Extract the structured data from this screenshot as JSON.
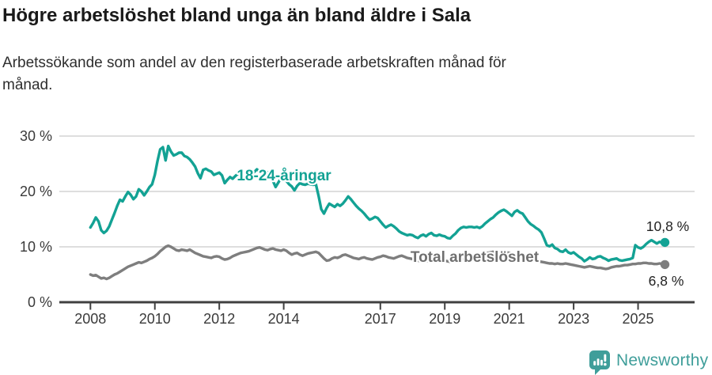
{
  "chart_data": {
    "type": "line",
    "title": "Högre arbetslöshet bland unga än bland äldre i Sala",
    "subtitle": "Arbetssökande som andel av den registerbaserade arbetskraften månad för\nmånad.",
    "grid_on": true,
    "legend_position": "inline-labels",
    "grid_color": "#d9d9d9",
    "axis_color": "#404040",
    "tick_label_color": "#3a3a3a",
    "value_label_color": "#222222",
    "x_axis": {
      "unit": "year",
      "range": [
        2007.0,
        2026.8
      ],
      "ticks": [
        {
          "year": 2008,
          "label": "2008"
        },
        {
          "year": 2010,
          "label": "2010"
        },
        {
          "year": 2012,
          "label": "2012"
        },
        {
          "year": 2014,
          "label": "2014"
        },
        {
          "year": 2017,
          "label": "2017"
        },
        {
          "year": 2019,
          "label": "2019"
        },
        {
          "year": 2021,
          "label": "2021"
        },
        {
          "year": 2023,
          "label": "2023"
        },
        {
          "year": 2025,
          "label": "2025"
        }
      ]
    },
    "y_axis": {
      "unit": "%",
      "range": [
        0,
        30
      ],
      "ticks": [
        {
          "value": 0,
          "label": "0 %"
        },
        {
          "value": 10,
          "label": "10 %"
        },
        {
          "value": 20,
          "label": "20 %"
        },
        {
          "value": 30,
          "label": "30 %"
        }
      ]
    },
    "series": [
      {
        "id": "youth",
        "name": "18-24-åringar",
        "color": "#13a294",
        "label_color": "#13a294",
        "start_year": 2008.0,
        "interval_months": 1,
        "end_label": "10,8 %",
        "last_value": 10.8,
        "values": [
          13.5,
          14.3,
          15.3,
          14.6,
          13.0,
          12.5,
          12.9,
          13.7,
          14.9,
          16.1,
          17.4,
          18.5,
          18.2,
          19.1,
          19.9,
          19.4,
          18.6,
          19.1,
          20.4,
          20.0,
          19.3,
          20.0,
          20.8,
          21.3,
          23.0,
          25.5,
          27.6,
          28.0,
          25.6,
          28.2,
          27.2,
          26.5,
          26.7,
          27.0,
          27.0,
          26.4,
          26.2,
          25.8,
          25.2,
          24.5,
          23.3,
          22.4,
          23.9,
          24.1,
          23.8,
          23.6,
          23.0,
          23.2,
          23.4,
          22.9,
          21.5,
          22.1,
          22.6,
          22.3,
          22.8,
          23.2,
          23.0,
          22.6,
          22.3,
          22.6,
          23.0,
          23.5,
          24.0,
          23.6,
          23.3,
          23.8,
          23.4,
          22.8,
          21.9,
          20.8,
          21.6,
          22.4,
          22.6,
          21.9,
          21.3,
          20.9,
          20.2,
          21.0,
          21.5,
          21.3,
          21.2,
          21.4,
          21.3,
          21.2,
          21.3,
          19.2,
          16.8,
          16.0,
          17.0,
          17.8,
          17.5,
          17.2,
          17.7,
          17.4,
          17.8,
          18.4,
          19.1,
          18.6,
          18.0,
          17.4,
          16.9,
          16.5,
          16.0,
          15.4,
          14.9,
          15.1,
          15.4,
          15.2,
          14.6,
          14.0,
          13.5,
          13.8,
          14.0,
          13.7,
          13.3,
          12.8,
          12.5,
          12.3,
          12.1,
          12.2,
          12.1,
          11.8,
          11.6,
          12.0,
          12.2,
          11.9,
          12.3,
          12.5,
          12.1,
          12.0,
          12.2,
          12.0,
          11.9,
          11.6,
          11.5,
          12.0,
          12.4,
          13.0,
          13.4,
          13.6,
          13.5,
          13.6,
          13.6,
          13.5,
          13.6,
          13.4,
          13.7,
          14.2,
          14.6,
          15.0,
          15.3,
          15.8,
          16.2,
          16.5,
          16.7,
          16.4,
          16.0,
          15.6,
          16.3,
          16.6,
          16.2,
          16.0,
          15.3,
          14.6,
          14.1,
          13.8,
          13.4,
          13.1,
          12.6,
          11.5,
          10.3,
          10.1,
          10.4,
          9.8,
          9.6,
          9.2,
          9.1,
          9.5,
          9.0,
          8.8,
          9.0,
          8.6,
          8.2,
          7.9,
          7.4,
          7.7,
          8.1,
          7.8,
          7.9,
          8.2,
          8.3,
          8.0,
          7.8,
          7.5,
          7.7,
          7.8,
          7.9,
          7.6,
          7.5,
          7.6,
          7.7,
          7.8,
          8.0,
          10.3,
          9.9,
          9.7,
          10.0,
          10.5,
          10.9,
          11.2,
          10.9,
          10.6,
          10.9,
          10.7,
          10.8
        ]
      },
      {
        "id": "total",
        "name": "Total arbetslöshet",
        "color": "#7e7e7e",
        "label_color": "#6f6f6f",
        "start_year": 2008.0,
        "interval_months": 1,
        "end_label": "6,8 %",
        "last_value": 6.8,
        "values": [
          5.0,
          4.8,
          4.9,
          4.6,
          4.3,
          4.4,
          4.2,
          4.4,
          4.7,
          5.0,
          5.2,
          5.5,
          5.8,
          6.1,
          6.4,
          6.6,
          6.8,
          7.0,
          7.2,
          7.1,
          7.3,
          7.5,
          7.8,
          8.0,
          8.3,
          8.7,
          9.2,
          9.6,
          10.0,
          10.2,
          10.0,
          9.7,
          9.4,
          9.3,
          9.5,
          9.4,
          9.3,
          9.5,
          9.2,
          8.9,
          8.7,
          8.5,
          8.3,
          8.2,
          8.1,
          8.0,
          8.2,
          8.3,
          8.2,
          7.9,
          7.7,
          7.8,
          8.0,
          8.3,
          8.5,
          8.7,
          8.9,
          9.0,
          9.1,
          9.2,
          9.4,
          9.6,
          9.8,
          9.9,
          9.7,
          9.5,
          9.4,
          9.6,
          9.7,
          9.5,
          9.4,
          9.3,
          9.5,
          9.3,
          8.9,
          8.6,
          8.8,
          8.9,
          8.6,
          8.4,
          8.6,
          8.8,
          8.9,
          9.0,
          9.1,
          8.9,
          8.4,
          7.9,
          7.5,
          7.6,
          7.9,
          8.1,
          8.0,
          8.2,
          8.5,
          8.6,
          8.4,
          8.2,
          8.0,
          7.9,
          7.8,
          8.0,
          8.1,
          7.9,
          7.8,
          7.7,
          7.9,
          8.1,
          8.2,
          8.4,
          8.3,
          8.1,
          8.0,
          7.9,
          8.1,
          8.3,
          8.4,
          8.2,
          8.0,
          7.9,
          7.8,
          7.6,
          7.5,
          7.4,
          7.3,
          7.4,
          7.5,
          7.4,
          7.3,
          7.4,
          7.5,
          7.6,
          7.5,
          7.4,
          7.3,
          7.4,
          7.5,
          7.6,
          7.7,
          7.8,
          7.9,
          8.0,
          8.1,
          8.2,
          8.3,
          8.4,
          8.6,
          8.8,
          8.9,
          9.0,
          9.1,
          9.0,
          8.9,
          9.0,
          9.1,
          9.0,
          8.9,
          8.8,
          8.7,
          8.5,
          8.4,
          8.2,
          8.1,
          7.9,
          7.8,
          7.6,
          7.5,
          7.4,
          7.3,
          7.2,
          7.1,
          7.0,
          7.0,
          6.9,
          7.0,
          6.9,
          6.9,
          7.0,
          6.9,
          6.8,
          6.7,
          6.6,
          6.5,
          6.4,
          6.3,
          6.4,
          6.5,
          6.4,
          6.3,
          6.2,
          6.2,
          6.1,
          6.0,
          6.1,
          6.3,
          6.4,
          6.5,
          6.5,
          6.6,
          6.7,
          6.7,
          6.8,
          6.9,
          6.9,
          7.0,
          7.0,
          7.1,
          7.1,
          7.0,
          7.0,
          6.9,
          6.9,
          7.0,
          6.9,
          6.8
        ]
      }
    ]
  },
  "footer": {
    "brand": "Newsworthy",
    "color": "#3f9e9a",
    "icon": "newsworthy-speech-bubble-bar-chart-icon"
  }
}
